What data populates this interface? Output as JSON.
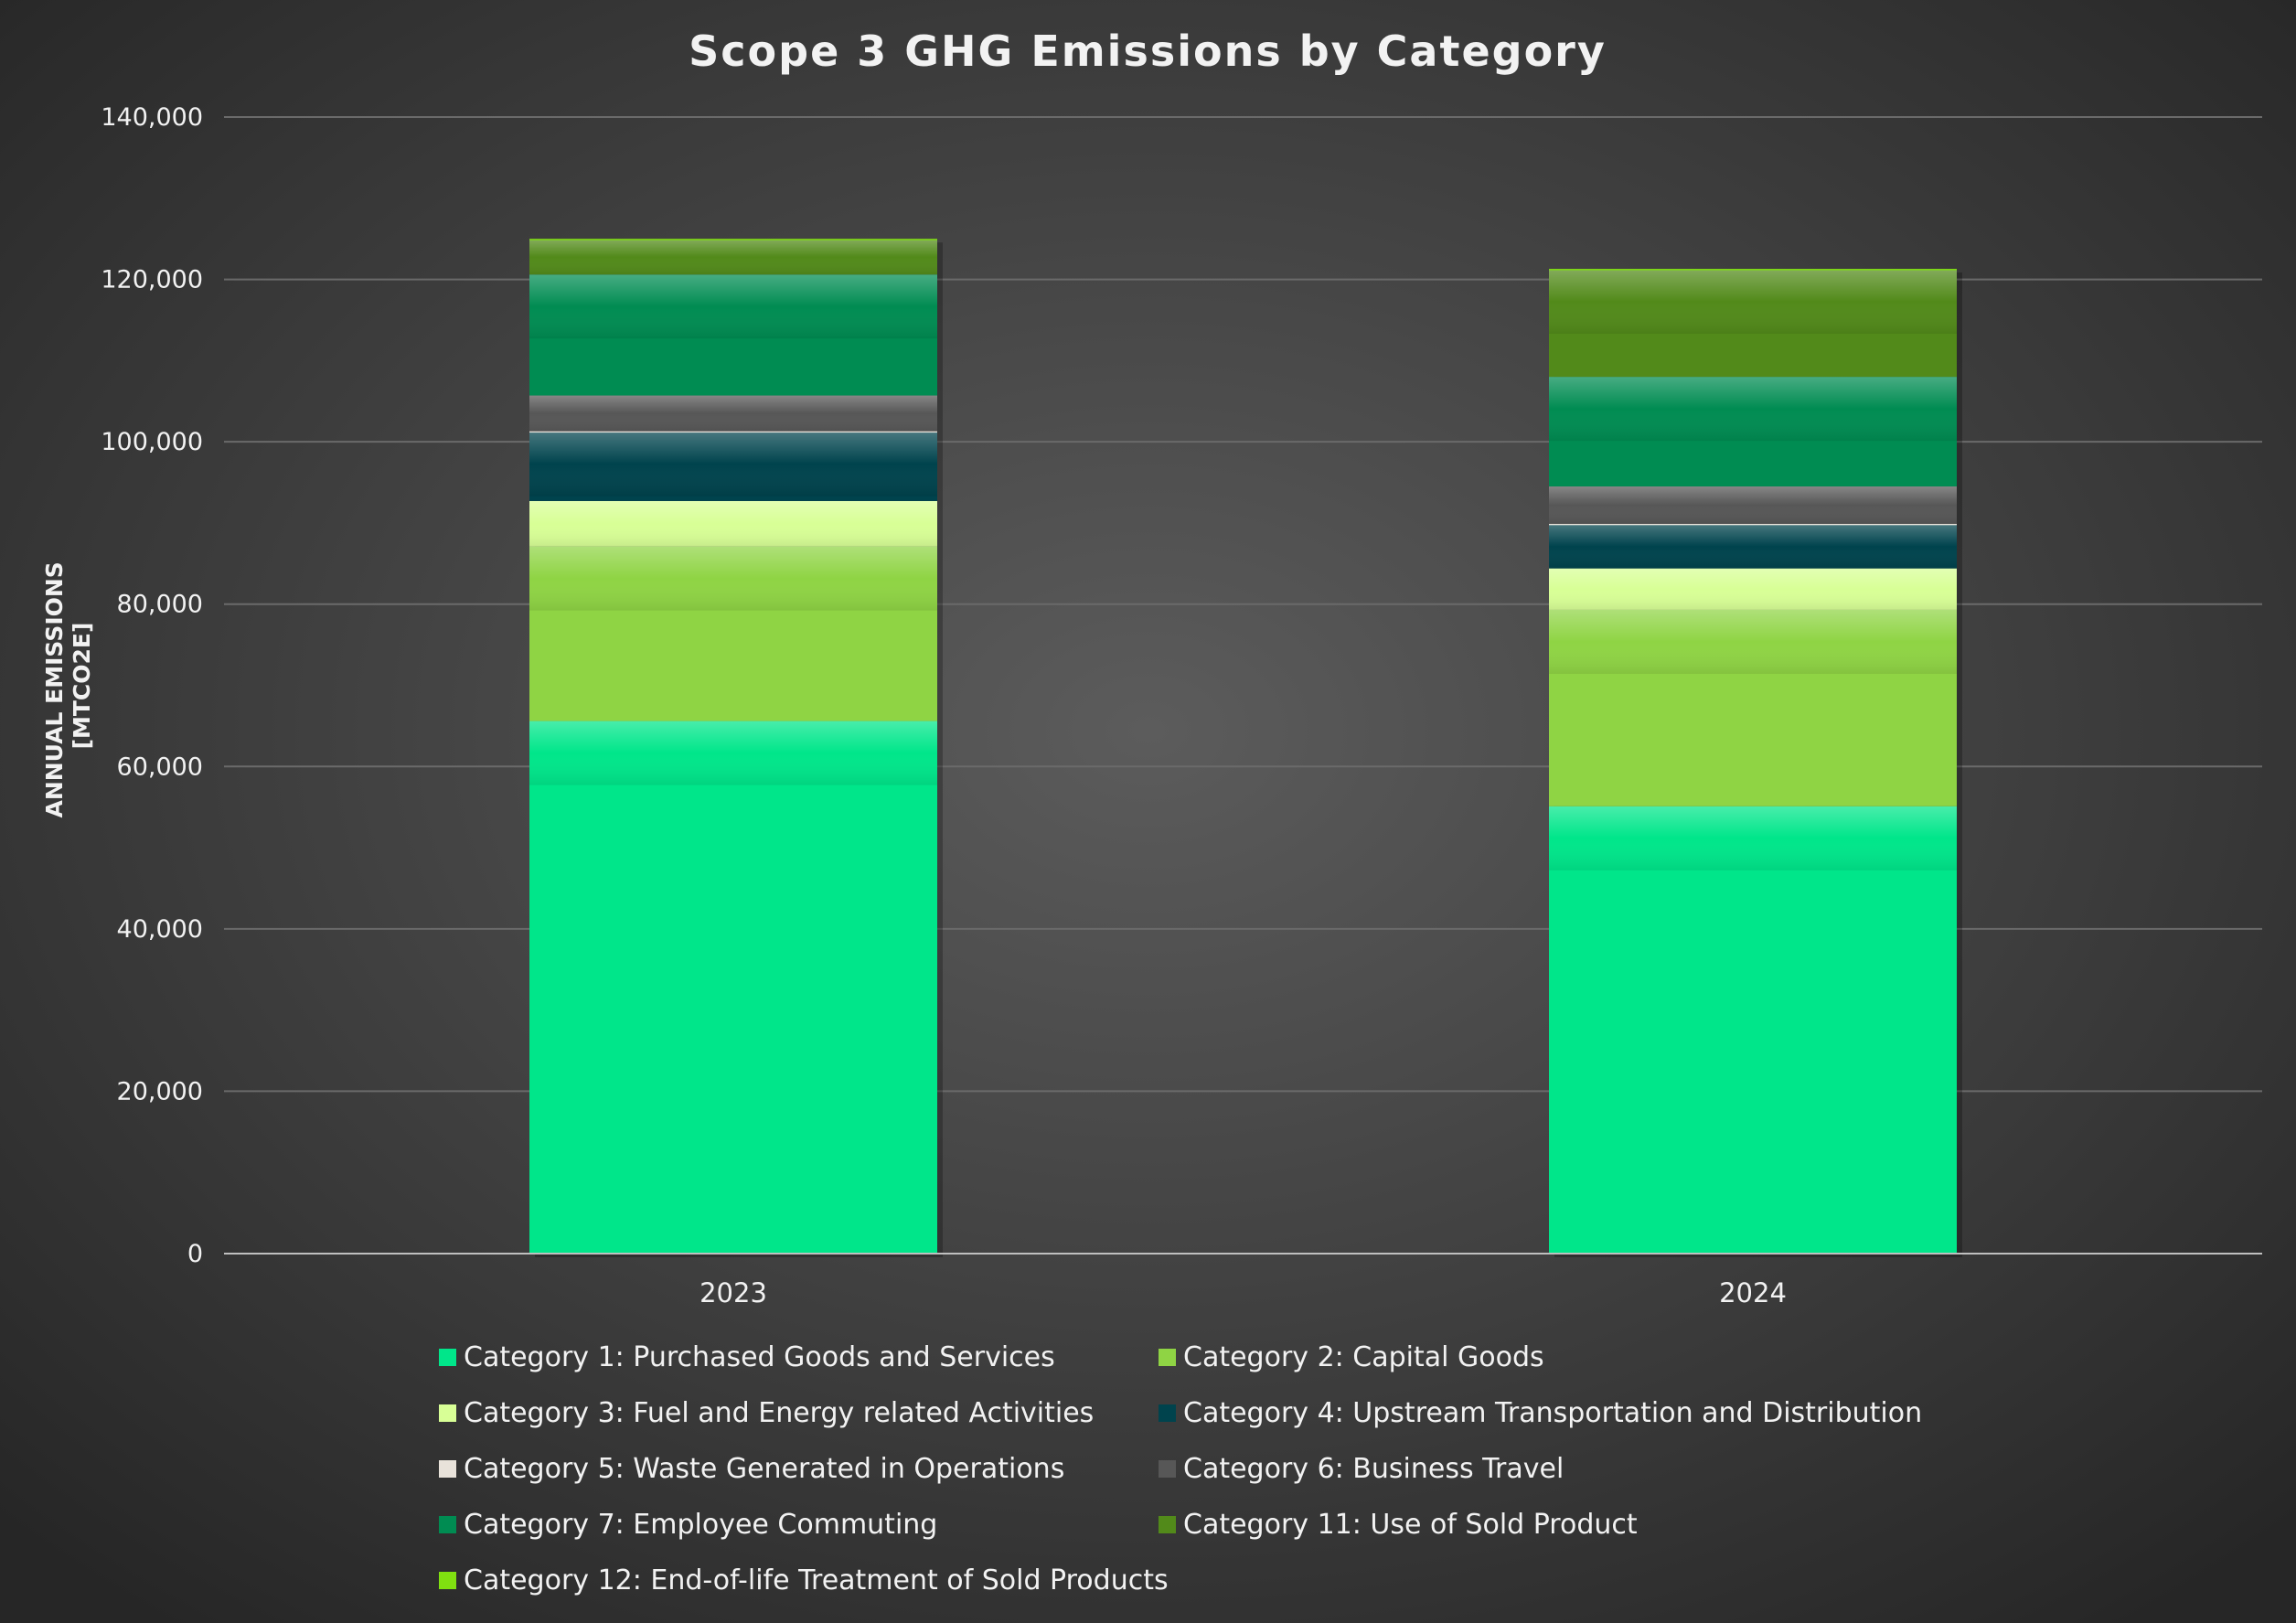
{
  "chart_data": {
    "type": "bar",
    "stacked": true,
    "title": "Scope 3 GHG Emissions by Category",
    "xlabel": "",
    "ylabel": "ANNUAL EMISSIONS [MTCO2E]",
    "ylabel_lines": [
      "ANNUAL EMISSIONS",
      "[MTCO2E]"
    ],
    "ylim": [
      0,
      140000
    ],
    "yticks": [
      0,
      20000,
      40000,
      60000,
      80000,
      100000,
      120000,
      140000
    ],
    "ytick_labels": [
      "0",
      "20,000",
      "40,000",
      "60,000",
      "80,000",
      "100,000",
      "120,000",
      "140,000"
    ],
    "grid": true,
    "legend_position": "bottom",
    "categories": [
      "2023",
      "2024"
    ],
    "series": [
      {
        "name": "Category 1: Purchased Goods and Services",
        "color": "#00e68a",
        "values": [
          65600,
          55100
        ]
      },
      {
        "name": "Category 2: Capital Goods",
        "color": "#8fd444",
        "values": [
          21500,
          24200
        ]
      },
      {
        "name": "Category 3: Fuel and Energy related Activities",
        "color": "#d8ff96",
        "values": [
          5600,
          5100
        ]
      },
      {
        "name": "Category 4: Upstream Transportation and Distribution",
        "color": "#00434d",
        "values": [
          8500,
          5400
        ]
      },
      {
        "name": "Category 5: Waste Generated in Operations",
        "color": "#e8e2da",
        "values": [
          100,
          100
        ]
      },
      {
        "name": "Category 6: Business Travel",
        "color": "#575757",
        "values": [
          4400,
          4600
        ]
      },
      {
        "name": "Category 7: Employee Commuting",
        "color": "#008c52",
        "values": [
          14900,
          13500
        ]
      },
      {
        "name": "Category 11: Use of Sold Product",
        "color": "#528a1a",
        "values": [
          4300,
          13200
        ]
      },
      {
        "name": "Category 12: End-of-life Treatment of Sold Products",
        "color": "#80e010",
        "values": [
          100,
          100
        ]
      }
    ]
  }
}
